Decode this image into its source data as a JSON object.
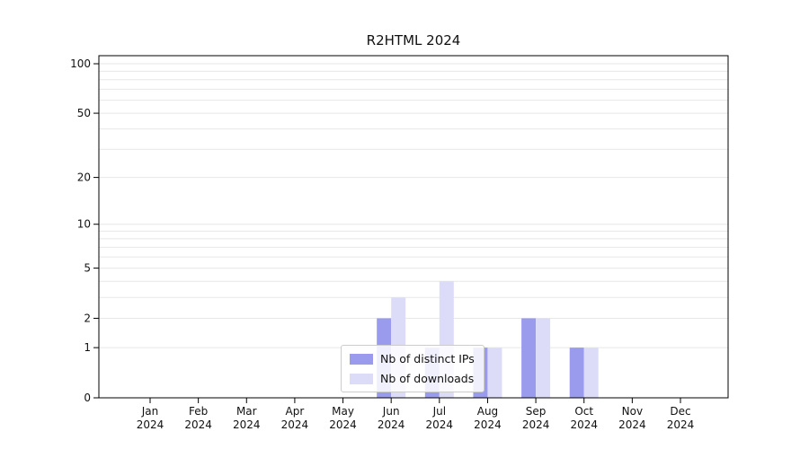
{
  "title": "R2HTML 2024",
  "legend": {
    "items": [
      {
        "label": "Nb of distinct IPs",
        "color": "#9b9bee"
      },
      {
        "label": "Nb of downloads",
        "color": "#dcdcf9"
      }
    ]
  },
  "chart_data": {
    "type": "bar",
    "title": "R2HTML 2024",
    "categories": [
      "Jan 2024",
      "Feb 2024",
      "Mar 2024",
      "Apr 2024",
      "May 2024",
      "Jun 2024",
      "Jul 2024",
      "Aug 2024",
      "Sep 2024",
      "Oct 2024",
      "Nov 2024",
      "Dec 2024"
    ],
    "series": [
      {
        "name": "Nb of distinct IPs",
        "color": "#9b9bee",
        "values": [
          0,
          0,
          0,
          0,
          0,
          2,
          1,
          1,
          2,
          1,
          0,
          0
        ]
      },
      {
        "name": "Nb of downloads",
        "color": "#dcdcf9",
        "values": [
          0,
          0,
          0,
          0,
          0,
          3,
          4,
          1,
          2,
          1,
          0,
          0
        ]
      }
    ],
    "xlabel": "",
    "ylabel": "",
    "yscale": "log1p",
    "yticks": [
      0,
      1,
      2,
      5,
      10,
      20,
      50,
      100
    ],
    "minor_gridlines": [
      1,
      2,
      3,
      4,
      5,
      6,
      7,
      8,
      9,
      10,
      20,
      30,
      40,
      50,
      60,
      70,
      80,
      90,
      100
    ],
    "ylim": [
      0,
      100
    ],
    "grid": true,
    "legend_position": "bottom-center-inside",
    "grid_color": "#e7e7e7",
    "axis_color": "#000000",
    "text_color": "#111111"
  }
}
